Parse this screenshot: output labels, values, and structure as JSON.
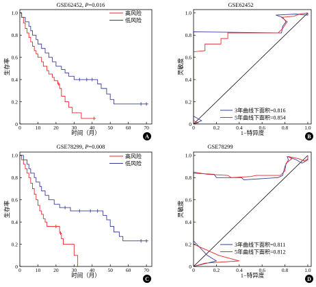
{
  "chart_data": [
    {
      "panel_label": "A",
      "type": "line",
      "step": true,
      "title": "GSE62452, P=0.016",
      "xlabel": "时间（月）",
      "ylabel": "生存率",
      "xlim": [
        0,
        73
      ],
      "ylim": [
        0,
        1.03
      ],
      "xticks": [
        0,
        10,
        20,
        30,
        40,
        50,
        60,
        70
      ],
      "xtick_labels": [
        "0",
        "10",
        "20",
        "30",
        "40",
        "50",
        "60",
        "70"
      ],
      "yticks": [
        0,
        0.2,
        0.4,
        0.6,
        0.8,
        1.0
      ],
      "ytick_labels": [
        "0",
        "0.2",
        "0.4",
        "0.6",
        "0.8",
        "1.0"
      ],
      "grid": false,
      "legend_position": "top-right",
      "series": [
        {
          "name": "高风险",
          "color": "#e5262b",
          "time": [
            1,
            2,
            3,
            4,
            5,
            6,
            7,
            8,
            9,
            10,
            12,
            13,
            15,
            16,
            18,
            19,
            21,
            22,
            23,
            25,
            27,
            29,
            34
          ],
          "survival": [
            0.96,
            0.91,
            0.86,
            0.82,
            0.78,
            0.74,
            0.7,
            0.66,
            0.63,
            0.6,
            0.56,
            0.52,
            0.48,
            0.45,
            0.42,
            0.39,
            0.36,
            0.32,
            0.25,
            0.2,
            0.15,
            0.1,
            0.05
          ],
          "end_time": 42,
          "censored": [
            [
              21.5,
              0.36
            ],
            [
              41,
              0.05
            ]
          ]
        },
        {
          "name": "低风险",
          "color": "#363c96",
          "time": [
            1,
            3,
            5,
            6,
            7,
            9,
            10,
            12,
            14,
            16,
            18,
            20,
            23,
            25,
            27,
            30,
            43,
            45,
            48,
            50,
            52
          ],
          "survival": [
            0.96,
            0.92,
            0.88,
            0.84,
            0.8,
            0.76,
            0.72,
            0.68,
            0.64,
            0.6,
            0.56,
            0.52,
            0.49,
            0.46,
            0.43,
            0.4,
            0.36,
            0.32,
            0.27,
            0.22,
            0.18
          ],
          "end_time": 71,
          "censored": [
            [
              33,
              0.4
            ],
            [
              37,
              0.4
            ],
            [
              40,
              0.4
            ],
            [
              67,
              0.18
            ],
            [
              70,
              0.18
            ]
          ]
        }
      ]
    },
    {
      "panel_label": "B",
      "type": "line",
      "step": false,
      "title": "GSE62452",
      "xlabel": "1−特异度",
      "ylabel": "灵敏度",
      "xlim": [
        0,
        1.03
      ],
      "ylim": [
        0,
        1.03
      ],
      "xticks": [
        0,
        0.2,
        0.4,
        0.6,
        0.8,
        1.0
      ],
      "xtick_labels": [
        "0",
        "0.2",
        "0.4",
        "0.6",
        "0.8",
        "1.0"
      ],
      "yticks": [
        0,
        0.2,
        0.4,
        0.6,
        0.8,
        1.0
      ],
      "ytick_labels": [
        "0",
        "0.2",
        "0.4",
        "0.6",
        "0.8",
        "1.0"
      ],
      "grid": false,
      "legend_position": "bottom-right",
      "reference_line": {
        "x": [
          0,
          1
        ],
        "y": [
          0,
          1
        ],
        "color": "#000000"
      },
      "series": [
        {
          "name": "3年曲线下面积=0.816",
          "color": "#363c96",
          "x": [
            0,
            0.07,
            0,
            0,
            0.77,
            0.78,
            0.81,
            0.78,
            0.72,
            0.9,
            1.0,
            1.0
          ],
          "y": [
            0,
            0.03,
            0.07,
            0.83,
            0.82,
            0.88,
            0.92,
            0.96,
            0.98,
            0.99,
            0.98,
            1.0
          ]
        },
        {
          "name": "5年曲线下面积=0.854",
          "color": "#e5262b",
          "x": [
            0,
            0.04,
            0,
            0,
            0.1,
            0.1,
            0.24,
            0.24,
            0.3,
            0.3,
            0.74,
            0.78,
            0.82,
            0.77,
            0.88,
            0.93,
            1.0
          ],
          "y": [
            0,
            0.01,
            0.03,
            0.65,
            0.66,
            0.72,
            0.72,
            0.77,
            0.77,
            0.82,
            0.82,
            0.86,
            0.92,
            0.96,
            0.97,
            0.99,
            1.0
          ]
        }
      ]
    },
    {
      "panel_label": "C",
      "type": "line",
      "step": true,
      "title": "GSE78299, P=0.008",
      "xlabel": "时间（月）",
      "ylabel": "生存率",
      "xlim": [
        0,
        73
      ],
      "ylim": [
        0,
        1.03
      ],
      "xticks": [
        0,
        10,
        20,
        30,
        40,
        50,
        60,
        70
      ],
      "xtick_labels": [
        "0",
        "10",
        "20",
        "30",
        "40",
        "50",
        "60",
        "70"
      ],
      "yticks": [
        0,
        0.2,
        0.4,
        0.6,
        0.8,
        1.0
      ],
      "ytick_labels": [
        "0",
        "0.2",
        "0.4",
        "0.6",
        "0.8",
        "1.0"
      ],
      "grid": false,
      "legend_position": "top-right",
      "series": [
        {
          "name": "高风险",
          "color": "#e5262b",
          "time": [
            1,
            2,
            3,
            4,
            5,
            6,
            7,
            8,
            9,
            10,
            11,
            12,
            13,
            14,
            15,
            22,
            23,
            24,
            30,
            32
          ],
          "survival": [
            0.96,
            0.92,
            0.88,
            0.84,
            0.8,
            0.75,
            0.7,
            0.65,
            0.6,
            0.55,
            0.5,
            0.47,
            0.43,
            0.4,
            0.36,
            0.3,
            0.25,
            0.2,
            0.1,
            0.0
          ],
          "end_time": 32,
          "censored": [
            [
              20,
              0.36
            ],
            [
              22.5,
              0.3
            ]
          ]
        },
        {
          "name": "低风险",
          "color": "#363c96",
          "time": [
            2,
            4,
            5,
            6,
            8,
            9,
            11,
            12,
            14,
            16,
            19,
            22,
            28,
            46,
            48,
            50,
            52,
            55,
            57
          ],
          "survival": [
            0.96,
            0.92,
            0.88,
            0.84,
            0.8,
            0.76,
            0.72,
            0.68,
            0.64,
            0.6,
            0.56,
            0.53,
            0.5,
            0.46,
            0.42,
            0.36,
            0.31,
            0.27,
            0.23
          ],
          "end_time": 71,
          "censored": [
            [
              25,
              0.53
            ],
            [
              33,
              0.5
            ],
            [
              39,
              0.5
            ],
            [
              43,
              0.5
            ],
            [
              67,
              0.23
            ],
            [
              70,
              0.23
            ]
          ]
        }
      ]
    },
    {
      "panel_label": "D",
      "type": "line",
      "step": false,
      "title": "GSE78299",
      "xlabel": "1−特异度",
      "ylabel": "灵敏度",
      "xlim": [
        0,
        1.03
      ],
      "ylim": [
        0,
        1.03
      ],
      "xticks": [
        0,
        0.2,
        0.4,
        0.6,
        0.8,
        1.0
      ],
      "xtick_labels": [
        "0",
        "0.2",
        "0.4",
        "0.6",
        "0.8",
        "1.0"
      ],
      "yticks": [
        0,
        0.2,
        0.4,
        0.6,
        0.8,
        1.0
      ],
      "ytick_labels": [
        "0",
        "0.2",
        "0.4",
        "0.6",
        "0.8",
        "1.0"
      ],
      "grid": false,
      "legend_position": "bottom-right",
      "reference_line": {
        "x": [
          0,
          1
        ],
        "y": [
          0,
          1
        ],
        "color": "#000000"
      },
      "series": [
        {
          "name": "3年曲线下面积=0.811",
          "color": "#363c96",
          "x": [
            0,
            0.2,
            0.12,
            0,
            0,
            0.18,
            0.2,
            0.42,
            0.44,
            0.74,
            0.78,
            0.8,
            0.83,
            0.82,
            0.9,
            0.95,
            1.0,
            1.0
          ],
          "y": [
            0,
            0.05,
            0.1,
            0.23,
            0.84,
            0.83,
            0.8,
            0.8,
            0.78,
            0.8,
            0.82,
            0.9,
            0.96,
            0.99,
            0.96,
            0.93,
            0.96,
            1.0
          ]
        },
        {
          "name": "5年曲线下面积=0.812",
          "color": "#e5262b",
          "x": [
            0,
            0.1,
            0.4,
            0.22,
            0,
            0,
            0.12,
            0.3,
            0.33,
            0.5,
            0.55,
            0.76,
            0.8,
            0.81,
            0.86,
            0.83,
            0.92,
            0.97,
            1.0,
            1.0
          ],
          "y": [
            0,
            0.03,
            0.05,
            0.1,
            0.2,
            0.85,
            0.83,
            0.82,
            0.8,
            0.81,
            0.82,
            0.82,
            0.86,
            0.93,
            0.97,
            0.99,
            0.97,
            0.95,
            0.97,
            1.0
          ]
        }
      ]
    }
  ]
}
